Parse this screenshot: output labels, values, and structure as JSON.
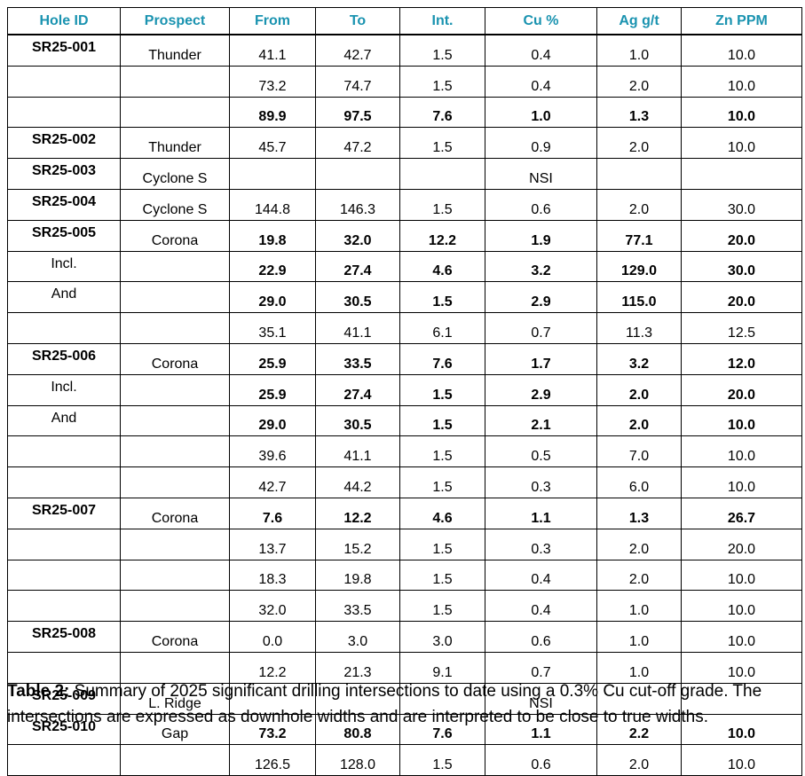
{
  "table": {
    "header": [
      "Hole ID",
      "Prospect",
      "From",
      "To",
      "Int.",
      "Cu %",
      "Ag g/t",
      "Zn PPM"
    ],
    "rows": [
      [
        "SR25-001",
        "Thunder",
        "41.1",
        "42.7",
        "1.5",
        "0.4",
        "1.0",
        "10.0"
      ],
      [
        null,
        null,
        "73.2",
        "74.7",
        "1.5",
        "0.4",
        "2.0",
        "10.0"
      ],
      [
        null,
        null,
        "89.9",
        "97.5",
        "7.6",
        "1.0",
        "1.3",
        "10.0"
      ],
      [
        "SR25-002",
        "Thunder",
        "45.7",
        "47.2",
        "1.5",
        "0.9",
        "2.0",
        "10.0"
      ],
      [
        "SR25-003",
        "Cyclone S",
        null,
        null,
        null,
        "NSI",
        null,
        null
      ],
      [
        "SR25-004",
        "Cyclone S",
        "144.8",
        "146.3",
        "1.5",
        "0.6",
        "2.0",
        "30.0"
      ],
      [
        "SR25-005",
        "Corona",
        "19.8",
        "32.0",
        "12.2",
        "1.9",
        "77.1",
        "20.0"
      ],
      [
        "Incl.",
        null,
        "22.9",
        "27.4",
        "4.6",
        "3.2",
        "129.0",
        "30.0"
      ],
      [
        "And",
        null,
        "29.0",
        "30.5",
        "1.5",
        "2.9",
        "115.0",
        "20.0"
      ],
      [
        null,
        null,
        "35.1",
        "41.1",
        "6.1",
        "0.7",
        "11.3",
        "12.5"
      ],
      [
        "SR25-006",
        "Corona",
        "25.9",
        "33.5",
        "7.6",
        "1.7",
        "3.2",
        "12.0"
      ],
      [
        "Incl.",
        null,
        "25.9",
        "27.4",
        "1.5",
        "2.9",
        "2.0",
        "20.0"
      ],
      [
        "And",
        null,
        "29.0",
        "30.5",
        "1.5",
        "2.1",
        "2.0",
        "10.0"
      ],
      [
        null,
        null,
        "39.6",
        "41.1",
        "1.5",
        "0.5",
        "7.0",
        "10.0"
      ],
      [
        null,
        null,
        "42.7",
        "44.2",
        "1.5",
        "0.3",
        "6.0",
        "10.0"
      ],
      [
        "SR25-007",
        "Corona",
        "7.6",
        "12.2",
        "4.6",
        "1.1",
        "1.3",
        "26.7"
      ],
      [
        null,
        null,
        "13.7",
        "15.2",
        "1.5",
        "0.3",
        "2.0",
        "20.0"
      ],
      [
        null,
        null,
        "18.3",
        "19.8",
        "1.5",
        "0.4",
        "2.0",
        "10.0"
      ],
      [
        null,
        null,
        "32.0",
        "33.5",
        "1.5",
        "0.4",
        "1.0",
        "10.0"
      ],
      [
        "SR25-008",
        "Corona",
        "0.0",
        "3.0",
        "3.0",
        "0.6",
        "1.0",
        "10.0"
      ],
      [
        null,
        null,
        "12.2",
        "21.3",
        "9.1",
        "0.7",
        "1.0",
        "10.0"
      ],
      [
        "SR25-009",
        "L. Ridge",
        null,
        null,
        null,
        "NSI",
        null,
        null
      ],
      [
        "SR25-010",
        "Gap",
        "73.2",
        "80.8",
        "7.6",
        "1.1",
        "2.2",
        "10.0"
      ],
      [
        null,
        null,
        "126.5",
        "128.0",
        "1.5",
        "0.6",
        "2.0",
        "10.0"
      ]
    ]
  },
  "caption": {
    "label": "Table 2:",
    "text": "Summary of 2025 significant drilling intersections to date using a 0.3% Cu cut-off grade. The intersections are expressed as downhole widths and are interpreted to be close to true widths."
  }
}
